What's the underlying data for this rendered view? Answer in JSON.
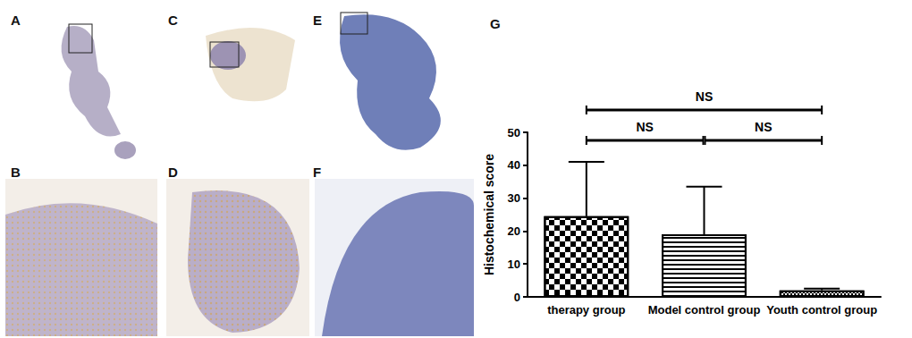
{
  "image_panels": [
    "A",
    "B",
    "C",
    "D",
    "E",
    "F"
  ],
  "chart_data": {
    "type": "bar",
    "title": "G",
    "categories": [
      "therapy group",
      "Model control group",
      "Youth control group"
    ],
    "values": [
      24.5,
      19,
      2
    ],
    "errors": [
      16.5,
      14.5,
      0.5
    ],
    "color": "#000000",
    "y_label": "Histochemical score",
    "ylim": [
      0,
      50
    ],
    "yticks": [
      0,
      10,
      20,
      30,
      40,
      50
    ],
    "grid": false,
    "annotations": [
      {
        "text": "NS",
        "from": 0,
        "to": 2
      },
      {
        "text": "NS",
        "from": 0,
        "to": 1
      },
      {
        "text": "NS",
        "from": 1,
        "to": 2
      }
    ]
  }
}
